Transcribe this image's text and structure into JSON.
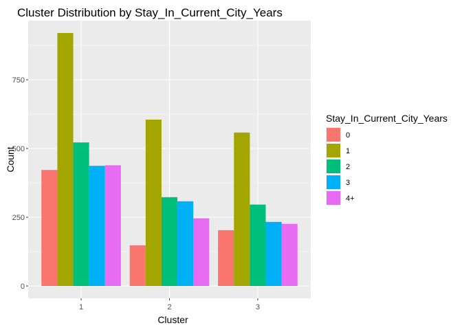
{
  "chart_data": {
    "type": "bar",
    "title": "Cluster Distribution by Stay_In_Current_City_Years",
    "xlabel": "Cluster",
    "ylabel": "Count",
    "categories": [
      "1",
      "2",
      "3"
    ],
    "ylim": [
      -45,
      965
    ],
    "yticks": [
      0,
      250,
      500,
      750
    ],
    "grid": true,
    "legend_position": "right",
    "legend_title": "Stay_In_Current_City_Years",
    "colors": {
      "panel_background": "#ebebeb",
      "grid": "#ffffff"
    },
    "series": [
      {
        "name": "0",
        "color": "#f8766d",
        "values": [
          422,
          148,
          203
        ]
      },
      {
        "name": "1",
        "color": "#a3a500",
        "values": [
          920,
          605,
          558
        ]
      },
      {
        "name": "2",
        "color": "#00bf7d",
        "values": [
          522,
          323,
          296
        ]
      },
      {
        "name": "3",
        "color": "#00b0f6",
        "values": [
          437,
          308,
          233
        ]
      },
      {
        "name": "4+",
        "color": "#e76bf3",
        "values": [
          439,
          246,
          226
        ]
      }
    ]
  }
}
